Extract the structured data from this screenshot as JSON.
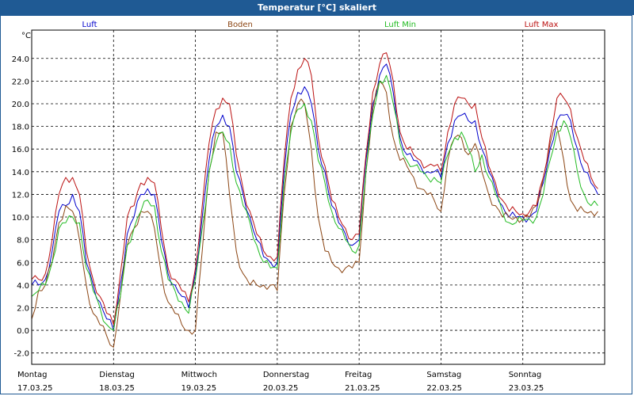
{
  "chart_data": {
    "type": "line",
    "title": "Temperatur [°C] skaliert",
    "ylabel": "°C",
    "ylim": [
      -3,
      26.5
    ],
    "yticks": [
      "24.0",
      "22.0",
      "20.0",
      "18.0",
      "16.0",
      "14.0",
      "12.0",
      "10.0",
      "8.0",
      "6.0",
      "4.0",
      "2.0",
      "0.0",
      "-2.0"
    ],
    "grid": true,
    "legend_position": "top",
    "days": [
      {
        "name": "Montag",
        "date": "17.03.25"
      },
      {
        "name": "Dienstag",
        "date": "18.03.25"
      },
      {
        "name": "Mittwoch",
        "date": "19.03.25"
      },
      {
        "name": "Donnerstag",
        "date": "20.03.25"
      },
      {
        "name": "Freitag",
        "date": "21.03.25"
      },
      {
        "name": "Samstag",
        "date": "22.03.25"
      },
      {
        "name": "Sonntag",
        "date": "23.03.25"
      }
    ],
    "x": [
      0,
      2,
      4,
      6,
      8,
      10,
      12,
      14,
      16,
      18,
      20,
      22
    ],
    "series": [
      {
        "name": "Luft",
        "color": "#0000cc",
        "values": [
          [
            4.0,
            4.0,
            4.5,
            7.0,
            10.5,
            11.0,
            12.0,
            10.5,
            6.0,
            4.0,
            2.5,
            1.0
          ],
          [
            0.0,
            4.0,
            8.5,
            10.0,
            12.0,
            12.5,
            12.0,
            8.0,
            5.0,
            4.0,
            3.0,
            2.0
          ],
          [
            5.0,
            10.0,
            15.0,
            18.0,
            19.0,
            18.0,
            14.0,
            12.0,
            10.0,
            8.0,
            6.5,
            6.0
          ],
          [
            6.0,
            14.0,
            19.0,
            21.0,
            21.5,
            20.0,
            16.0,
            14.0,
            11.0,
            9.5,
            8.5,
            7.5
          ],
          [
            8.0,
            15.0,
            20.0,
            22.5,
            23.5,
            21.0,
            17.0,
            15.5,
            15.0,
            14.5,
            14.0,
            14.0
          ],
          [
            13.5,
            16.5,
            18.5,
            19.0,
            18.5,
            18.5,
            16.0,
            14.0,
            12.5,
            11.0,
            10.0,
            10.0
          ],
          [
            10.0,
            10.0,
            10.5,
            13.0,
            16.0,
            18.5,
            19.0,
            18.5,
            16.0,
            14.0,
            13.0,
            12.0
          ]
        ]
      },
      {
        "name": "Boden",
        "color": "#8b4513",
        "values": [
          [
            1.0,
            3.5,
            4.0,
            6.0,
            9.5,
            11.0,
            10.5,
            8.0,
            4.0,
            1.5,
            0.5,
            -0.5
          ],
          [
            -1.5,
            3.0,
            7.5,
            9.0,
            10.5,
            10.5,
            9.0,
            5.0,
            2.5,
            1.5,
            0.5,
            0.0
          ],
          [
            0.0,
            7.0,
            14.0,
            17.5,
            17.5,
            12.0,
            7.0,
            5.0,
            4.0,
            4.0,
            4.0,
            4.0
          ],
          [
            3.5,
            12.0,
            18.0,
            20.0,
            20.0,
            16.0,
            10.0,
            7.0,
            6.0,
            5.5,
            5.5,
            5.5
          ],
          [
            6.0,
            14.0,
            19.5,
            22.0,
            21.0,
            17.0,
            15.0,
            14.5,
            13.5,
            12.5,
            12.0,
            11.5
          ],
          [
            10.5,
            15.0,
            17.0,
            17.0,
            15.5,
            16.5,
            14.0,
            12.0,
            11.0,
            10.0,
            10.0,
            10.0
          ],
          [
            9.8,
            10.0,
            11.0,
            13.5,
            16.5,
            18.0,
            15.0,
            11.5,
            10.5,
            10.5,
            10.5,
            10.5
          ]
        ]
      },
      {
        "name": "Luft Min",
        "color": "#22bb22",
        "values": [
          [
            3.0,
            3.5,
            4.0,
            6.0,
            9.0,
            9.5,
            10.0,
            9.5,
            5.5,
            3.5,
            2.0,
            0.5
          ],
          [
            0.0,
            3.0,
            7.5,
            9.0,
            10.5,
            11.5,
            11.0,
            7.0,
            4.5,
            3.5,
            2.5,
            1.5
          ],
          [
            4.5,
            9.0,
            14.0,
            16.5,
            17.5,
            16.5,
            13.0,
            11.0,
            9.5,
            7.5,
            6.0,
            5.5
          ],
          [
            5.5,
            13.0,
            17.5,
            19.5,
            20.0,
            18.5,
            15.0,
            13.0,
            10.5,
            9.0,
            8.0,
            7.0
          ],
          [
            7.5,
            14.0,
            19.0,
            22.0,
            22.5,
            20.0,
            16.5,
            15.0,
            14.5,
            14.0,
            13.5,
            13.5
          ],
          [
            13.0,
            15.5,
            17.0,
            17.5,
            16.0,
            14.0,
            15.5,
            13.5,
            12.0,
            10.5,
            9.5,
            9.5
          ],
          [
            9.7,
            9.8,
            10.0,
            12.0,
            15.0,
            17.5,
            18.5,
            17.0,
            14.0,
            12.0,
            11.0,
            11.0
          ]
        ]
      },
      {
        "name": "Luft Max",
        "color": "#bb1111",
        "values": [
          [
            4.5,
            4.5,
            5.0,
            8.0,
            12.0,
            13.5,
            13.5,
            12.0,
            7.0,
            4.5,
            3.0,
            1.5
          ],
          [
            0.5,
            5.0,
            10.0,
            11.0,
            13.0,
            13.5,
            13.0,
            9.0,
            5.5,
            4.5,
            3.5,
            2.5
          ],
          [
            5.5,
            11.0,
            16.5,
            19.5,
            20.5,
            20.0,
            15.5,
            12.5,
            10.5,
            8.5,
            7.0,
            6.5
          ],
          [
            6.5,
            15.0,
            20.5,
            23.0,
            24.0,
            22.5,
            17.0,
            14.5,
            11.5,
            10.0,
            9.0,
            8.0
          ],
          [
            8.5,
            15.5,
            21.0,
            23.5,
            24.5,
            22.0,
            17.5,
            16.0,
            15.5,
            15.0,
            14.5,
            14.5
          ],
          [
            14.0,
            17.5,
            20.0,
            20.5,
            20.0,
            20.0,
            17.0,
            14.5,
            13.0,
            11.5,
            10.5,
            10.5
          ],
          [
            10.3,
            10.5,
            11.0,
            13.5,
            17.0,
            20.5,
            20.5,
            19.5,
            17.0,
            15.0,
            13.5,
            12.5
          ]
        ]
      }
    ]
  }
}
